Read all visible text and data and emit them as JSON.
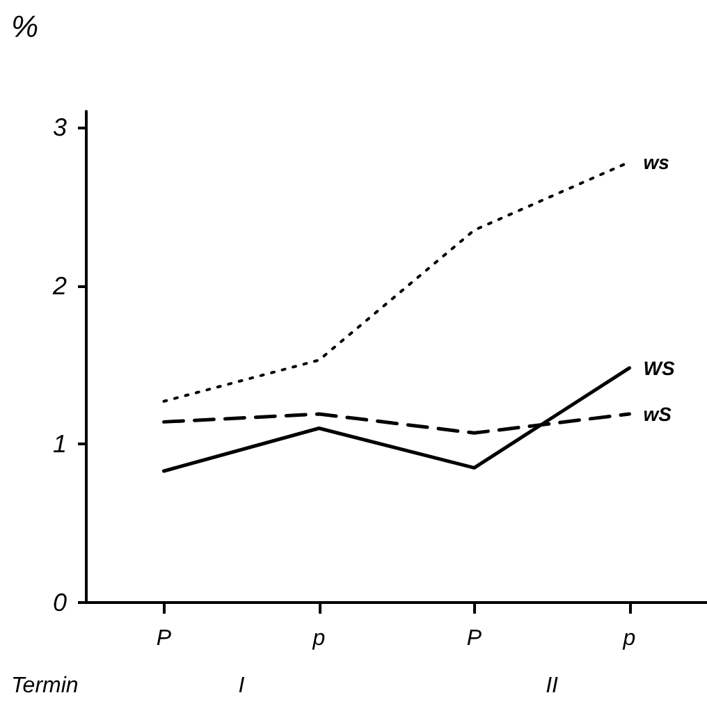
{
  "chart_data": {
    "type": "line",
    "ylabel": "%",
    "xlabel": "Termin",
    "categories": [
      "P",
      "p",
      "P",
      "p"
    ],
    "series": [
      {
        "name": "ws",
        "color": "#000000",
        "line_style": "dotted",
        "values": [
          1.27,
          1.53,
          2.35,
          2.78
        ]
      },
      {
        "name": "WS",
        "color": "#000000",
        "line_style": "solid",
        "values": [
          0.83,
          1.1,
          0.85,
          1.48
        ]
      },
      {
        "name": "wS",
        "color": "#000000",
        "line_style": "dashed",
        "values": [
          1.14,
          1.19,
          1.07,
          1.19
        ]
      }
    ],
    "annotations": [
      "I",
      "II"
    ],
    "ylim": [
      0,
      3.1
    ],
    "yticks": [
      0,
      1,
      2,
      3
    ],
    "grid": false,
    "legend": false,
    "marker": "none"
  }
}
